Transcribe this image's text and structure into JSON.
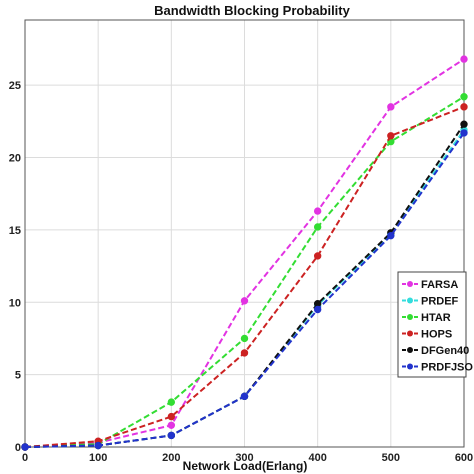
{
  "chart_data": {
    "type": "line",
    "title": "Bandwidth Blocking Probability",
    "xlabel": "Network Load(Erlang)",
    "ylabel": "",
    "x": [
      0,
      100,
      200,
      300,
      400,
      500,
      600
    ],
    "xlim": [
      0,
      600
    ],
    "ylim": [
      0,
      29.5
    ],
    "xticks": [
      "0",
      "100",
      "200",
      "300",
      "400",
      "500",
      "600"
    ],
    "yticks": [
      "0",
      "5",
      "10",
      "15",
      "20",
      "25"
    ],
    "grid": true,
    "legend_position": "right",
    "series": [
      {
        "name": "FARSA",
        "color": "#e233e2",
        "values": [
          0,
          0.3,
          1.5,
          10.1,
          16.3,
          23.5,
          26.8
        ]
      },
      {
        "name": "PRDEF",
        "color": "#33dddd",
        "values": [
          0,
          0.1,
          0.8,
          3.5,
          9.8,
          14.7,
          21.9
        ]
      },
      {
        "name": "HTAR",
        "color": "#33dd33",
        "values": [
          0,
          0.2,
          3.1,
          7.5,
          15.2,
          21.1,
          24.2
        ]
      },
      {
        "name": "HOPS",
        "color": "#cc2222",
        "values": [
          0,
          0.4,
          2.1,
          6.5,
          13.2,
          21.5,
          23.5
        ]
      },
      {
        "name": "DFGen40",
        "color": "#111111",
        "values": [
          0,
          0.1,
          0.8,
          3.5,
          9.9,
          14.8,
          22.3
        ]
      },
      {
        "name": "PRDFJSO",
        "color": "#2233cc",
        "values": [
          0,
          0.1,
          0.8,
          3.5,
          9.5,
          14.6,
          21.7
        ]
      }
    ]
  }
}
